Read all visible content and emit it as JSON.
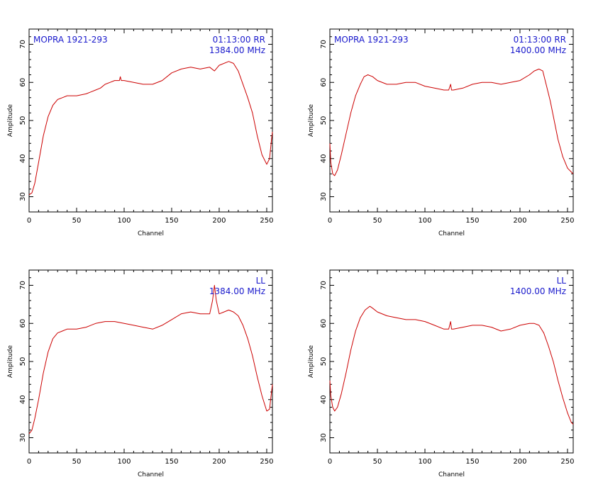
{
  "chart_data": [
    {
      "type": "line",
      "annotation_left": "MOPRA 1921-293",
      "annotation_time": "01:13:00  RR",
      "annotation_freq": "1384.00  MHz",
      "xlabel": "Channel",
      "ylabel": "Amplitude",
      "xlim": [
        0,
        256
      ],
      "ylim": [
        26,
        74
      ],
      "xticks": [
        0,
        50,
        100,
        150,
        200,
        250
      ],
      "yticks": [
        30,
        40,
        50,
        60,
        70
      ],
      "series": [
        {
          "color": "#cc0000",
          "x": [
            0,
            3,
            6,
            10,
            15,
            20,
            25,
            30,
            35,
            40,
            50,
            60,
            70,
            75,
            80,
            85,
            90,
            95,
            96,
            97,
            100,
            110,
            120,
            130,
            140,
            150,
            160,
            170,
            180,
            190,
            195,
            200,
            210,
            215,
            220,
            225,
            230,
            235,
            240,
            245,
            250,
            253,
            255,
            256
          ],
          "y": [
            30.5,
            31,
            33.5,
            39,
            46,
            51,
            54,
            55.5,
            56,
            56.5,
            56.5,
            57,
            58,
            58.5,
            59.5,
            60,
            60.5,
            60.5,
            61.5,
            60.5,
            60.5,
            60,
            59.5,
            59.5,
            60.5,
            62.5,
            63.5,
            64,
            63.5,
            64,
            63,
            64.5,
            65.5,
            65,
            63,
            59.5,
            56,
            52,
            46,
            41,
            38.5,
            40,
            45,
            47
          ]
        }
      ]
    },
    {
      "type": "line",
      "annotation_left": "MOPRA 1921-293",
      "annotation_time": "01:13:00  RR",
      "annotation_freq": "1400.00  MHz",
      "xlabel": "Channel",
      "ylabel": "Amplitude",
      "xlim": [
        0,
        256
      ],
      "ylim": [
        26,
        74
      ],
      "xticks": [
        0,
        50,
        100,
        150,
        200,
        250
      ],
      "yticks": [
        30,
        40,
        50,
        60,
        70
      ],
      "series": [
        {
          "color": "#cc0000",
          "x": [
            0,
            1,
            3,
            5,
            8,
            12,
            17,
            22,
            27,
            32,
            36,
            40,
            45,
            50,
            60,
            70,
            80,
            90,
            100,
            110,
            120,
            125,
            127,
            128,
            130,
            140,
            150,
            160,
            170,
            180,
            190,
            200,
            210,
            215,
            220,
            224,
            228,
            232,
            236,
            240,
            245,
            250,
            254,
            256
          ],
          "y": [
            44,
            39,
            36,
            35.5,
            37,
            41,
            46.5,
            52,
            56.5,
            59.5,
            61.5,
            62,
            61.5,
            60.5,
            59.5,
            59.5,
            60,
            60,
            59,
            58.5,
            58,
            58,
            59.5,
            58,
            58,
            58.5,
            59.5,
            60,
            60,
            59.5,
            60,
            60.5,
            62,
            63,
            63.5,
            63,
            59,
            55,
            50,
            45,
            40.5,
            37.5,
            36.5,
            36
          ]
        }
      ]
    },
    {
      "type": "line",
      "annotation_left": "",
      "annotation_time": "LL",
      "annotation_freq": "1384.00  MHz",
      "xlabel": "Channel",
      "ylabel": "Amplitude",
      "xlim": [
        0,
        256
      ],
      "ylim": [
        26,
        74
      ],
      "xticks": [
        0,
        50,
        100,
        150,
        200,
        250
      ],
      "yticks": [
        30,
        40,
        50,
        60,
        70
      ],
      "series": [
        {
          "color": "#cc0000",
          "x": [
            0,
            3,
            6,
            10,
            15,
            20,
            25,
            30,
            35,
            40,
            50,
            60,
            70,
            80,
            90,
            100,
            110,
            120,
            130,
            140,
            150,
            160,
            170,
            180,
            190,
            193,
            195,
            197,
            200,
            205,
            210,
            215,
            220,
            225,
            230,
            235,
            240,
            245,
            250,
            253,
            255,
            256
          ],
          "y": [
            31,
            32,
            35,
            40,
            47,
            52.5,
            56,
            57.5,
            58,
            58.5,
            58.5,
            59,
            60,
            60.5,
            60.5,
            60,
            59.5,
            59,
            58.5,
            59.5,
            61,
            62.5,
            63,
            62.5,
            62.5,
            66,
            70,
            66,
            62.5,
            63,
            63.5,
            63,
            62,
            59.5,
            56,
            51.5,
            46,
            41,
            37,
            37.5,
            42,
            44
          ]
        }
      ]
    },
    {
      "type": "line",
      "annotation_left": "",
      "annotation_time": "LL",
      "annotation_freq": "1400.00  MHz",
      "xlabel": "Channel",
      "ylabel": "Amplitude",
      "xlim": [
        0,
        256
      ],
      "ylim": [
        26,
        74
      ],
      "xticks": [
        0,
        50,
        100,
        150,
        200,
        250
      ],
      "yticks": [
        30,
        40,
        50,
        60,
        70
      ],
      "series": [
        {
          "color": "#cc0000",
          "x": [
            0,
            1,
            3,
            5,
            8,
            12,
            17,
            22,
            27,
            32,
            37,
            42,
            45,
            50,
            60,
            70,
            80,
            90,
            100,
            110,
            120,
            125,
            127,
            128,
            130,
            140,
            150,
            160,
            170,
            180,
            190,
            200,
            210,
            215,
            220,
            225,
            230,
            235,
            240,
            245,
            250,
            254,
            256
          ],
          "y": [
            45,
            41,
            38,
            37,
            38,
            41.5,
            47,
            53,
            58,
            61.5,
            63.5,
            64.5,
            64,
            63,
            62,
            61.5,
            61,
            61,
            60.5,
            59.5,
            58.5,
            58.5,
            60.5,
            58.5,
            58.5,
            59,
            59.5,
            59.5,
            59,
            58,
            58.5,
            59.5,
            60,
            60,
            59.5,
            57.5,
            54,
            50,
            45,
            40.5,
            36.5,
            34,
            33.5
          ]
        }
      ]
    }
  ]
}
